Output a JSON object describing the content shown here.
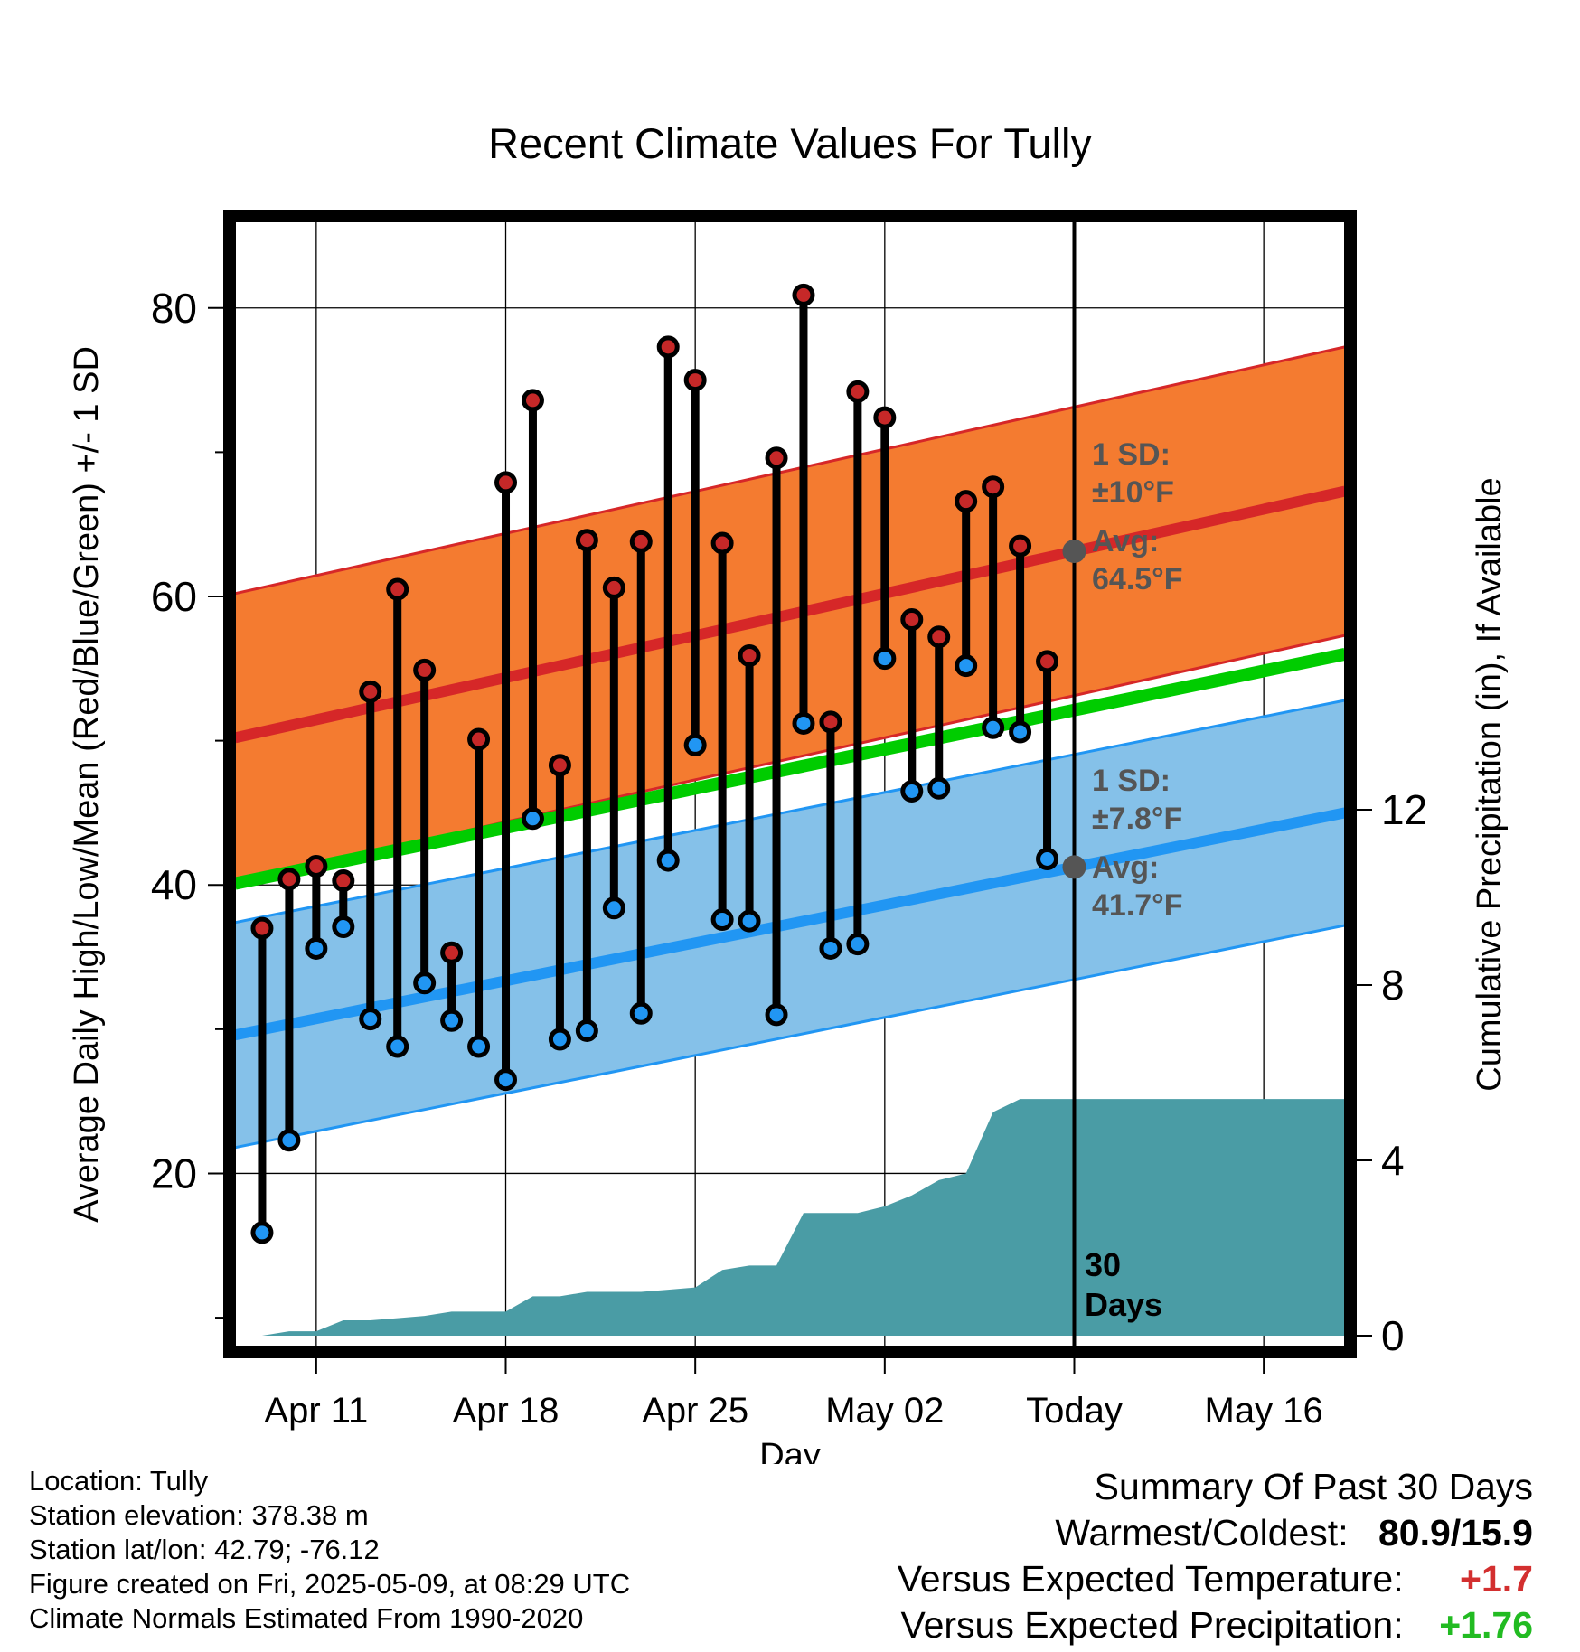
{
  "chart_data": {
    "type": "line",
    "title": "Recent Climate Values For Tully",
    "xlabel": "Day",
    "ylabel": "Average Daily High/Low/Mean (Red/Blue/Green) +/- 1 SD",
    "y2label": "Cumulative Precipitation (in), If Available",
    "xtick_labels": [
      "Apr 11",
      "Apr 18",
      "Apr 25",
      "May 02",
      "Today",
      "May 16"
    ],
    "ylim": [
      8,
      86
    ],
    "y2lim": [
      0,
      18
    ],
    "yticks": [
      20,
      40,
      60,
      80
    ],
    "y2ticks": [
      0,
      4,
      8,
      12
    ],
    "x_range": [
      "2025-04-08",
      "2025-05-19"
    ],
    "today": "2025-05-09",
    "grid": true,
    "series": [
      {
        "name": "High",
        "color": "#c62828",
        "dates": [
          "2025-04-09",
          "2025-04-10",
          "2025-04-11",
          "2025-04-12",
          "2025-04-13",
          "2025-04-14",
          "2025-04-15",
          "2025-04-16",
          "2025-04-17",
          "2025-04-18",
          "2025-04-19",
          "2025-04-20",
          "2025-04-21",
          "2025-04-22",
          "2025-04-23",
          "2025-04-24",
          "2025-04-25",
          "2025-04-26",
          "2025-04-27",
          "2025-04-28",
          "2025-04-29",
          "2025-04-30",
          "2025-05-01",
          "2025-05-02",
          "2025-05-03",
          "2025-05-04",
          "2025-05-05",
          "2025-05-06",
          "2025-05-07",
          "2025-05-08"
        ],
        "values": [
          37.0,
          40.4,
          41.3,
          40.3,
          53.4,
          60.5,
          54.9,
          35.3,
          50.1,
          67.9,
          73.6,
          48.3,
          63.9,
          60.6,
          63.8,
          77.3,
          75.0,
          63.7,
          55.9,
          69.6,
          80.9,
          51.3,
          74.2,
          72.4,
          58.4,
          57.2,
          66.6,
          67.6,
          63.5,
          55.5
        ]
      },
      {
        "name": "Low",
        "color": "#2196f3",
        "dates": [
          "2025-04-09",
          "2025-04-10",
          "2025-04-11",
          "2025-04-12",
          "2025-04-13",
          "2025-04-14",
          "2025-04-15",
          "2025-04-16",
          "2025-04-17",
          "2025-04-18",
          "2025-04-19",
          "2025-04-20",
          "2025-04-21",
          "2025-04-22",
          "2025-04-23",
          "2025-04-24",
          "2025-04-25",
          "2025-04-26",
          "2025-04-27",
          "2025-04-28",
          "2025-04-29",
          "2025-04-30",
          "2025-05-01",
          "2025-05-02",
          "2025-05-03",
          "2025-05-04",
          "2025-05-05",
          "2025-05-06",
          "2025-05-07",
          "2025-05-08"
        ],
        "values": [
          15.9,
          22.3,
          35.6,
          37.1,
          30.7,
          28.8,
          33.2,
          30.6,
          28.8,
          26.5,
          44.6,
          29.3,
          29.9,
          38.4,
          31.1,
          41.7,
          49.7,
          37.6,
          37.5,
          31.0,
          51.2,
          35.6,
          35.9,
          55.7,
          46.5,
          46.7,
          55.2,
          50.9,
          50.6,
          41.8
        ]
      },
      {
        "name": "Mean normal",
        "color": "#00cc00",
        "dates": [
          "2025-04-08",
          "2025-05-19"
        ],
        "values": [
          40.1,
          56.0
        ]
      },
      {
        "name": "Normal high",
        "color": "#d62728",
        "dates": [
          "2025-04-08",
          "2025-05-19"
        ],
        "values": [
          50.2,
          67.3
        ],
        "sd": 10.0
      },
      {
        "name": "Normal low",
        "color": "#2196f3",
        "dates": [
          "2025-04-08",
          "2025-05-19"
        ],
        "values": [
          29.6,
          45.0
        ],
        "sd": 7.8
      },
      {
        "name": "Cumulative precipitation",
        "axis": "y2",
        "color": "#4a9ca5",
        "dates": [
          "2025-04-08",
          "2025-04-09",
          "2025-04-10",
          "2025-04-11",
          "2025-04-12",
          "2025-04-13",
          "2025-04-14",
          "2025-04-15",
          "2025-04-16",
          "2025-04-17",
          "2025-04-18",
          "2025-04-19",
          "2025-04-20",
          "2025-04-21",
          "2025-04-22",
          "2025-04-23",
          "2025-04-24",
          "2025-04-25",
          "2025-04-26",
          "2025-04-27",
          "2025-04-28",
          "2025-04-29",
          "2025-04-30",
          "2025-05-01",
          "2025-05-02",
          "2025-05-03",
          "2025-05-04",
          "2025-05-05",
          "2025-05-06",
          "2025-05-07",
          "2025-05-08",
          "2025-05-19"
        ],
        "values": [
          0,
          0.0,
          0.1,
          0.1,
          0.35,
          0.35,
          0.4,
          0.45,
          0.55,
          0.55,
          0.55,
          0.9,
          0.9,
          1.0,
          1.0,
          1.0,
          1.05,
          1.1,
          1.5,
          1.6,
          1.6,
          2.8,
          2.8,
          2.8,
          2.95,
          3.2,
          3.55,
          3.7,
          5.1,
          5.4,
          5.4,
          5.4
        ]
      }
    ],
    "annotations": {
      "high_sd_1": "1 SD:",
      "high_sd_2": "±10°F",
      "high_avg_1": "Avg:",
      "high_avg_2": "64.5°F",
      "low_sd_1": "1 SD:",
      "low_sd_2": "±7.8°F",
      "low_avg_1": "Avg:",
      "low_avg_2": "41.7°F",
      "days_1": "30",
      "days_2": "Days"
    }
  },
  "footer": {
    "location": "Location: Tully",
    "elevation": "Station elevation: 378.38 m",
    "latlon": "Station lat/lon: 42.79; -76.12",
    "created": "Figure created on Fri, 2025-05-09, at 08:29 UTC",
    "normals": "Climate Normals Estimated From 1990-2020"
  },
  "summary": {
    "title": "Summary Of Past 30 Days",
    "warmest_label": "Warmest/Coldest:",
    "warmest_value": "80.9/15.9",
    "temp_label": "Versus Expected Temperature:",
    "temp_value": "+1.7",
    "temp_color": "#d32f2f",
    "precip_label": "Versus Expected Precipitation:",
    "precip_value": "+1.76",
    "precip_color": "#22bb22"
  }
}
